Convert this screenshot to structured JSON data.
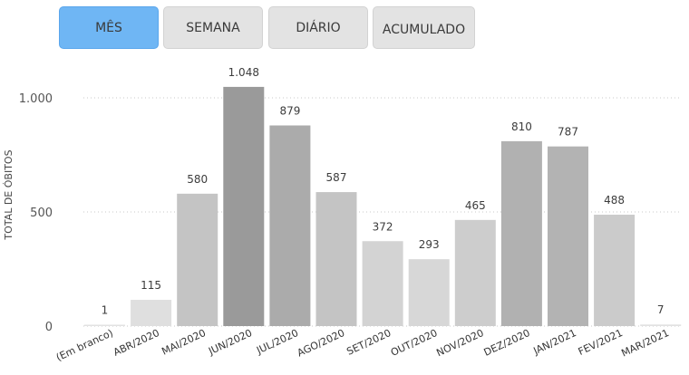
{
  "tabs": [
    {
      "label": "MÊS",
      "active": true
    },
    {
      "label": "SEMANA",
      "active": false
    },
    {
      "label": "DIÁRIO",
      "active": false
    },
    {
      "label": "ACUMULADO",
      "active": false
    }
  ],
  "colors": {
    "active_tab": "#6fb6f4",
    "inactive_tab": "#e3e3e3"
  },
  "chart_data": {
    "type": "bar",
    "ylabel": "TOTAL DE ÓBITOS",
    "ylim": [
      0,
      1000
    ],
    "yticks": [
      0,
      500,
      1000
    ],
    "ytick_labels": [
      "0",
      "500",
      "1.000"
    ],
    "grid": true,
    "categories": [
      "(Em branco)",
      "ABR/2020",
      "MAI/2020",
      "JUN/2020",
      "JUL/2020",
      "AGO/2020",
      "SET/2020",
      "OUT/2020",
      "NOV/2020",
      "DEZ/2020",
      "JAN/2021",
      "FEV/2021",
      "MAR/2021"
    ],
    "values": [
      1,
      115,
      580,
      1048,
      879,
      587,
      372,
      293,
      465,
      810,
      787,
      488,
      7
    ],
    "value_labels": [
      "1",
      "115",
      "580",
      "1.048",
      "879",
      "587",
      "372",
      "293",
      "465",
      "810",
      "787",
      "488",
      "7"
    ]
  }
}
